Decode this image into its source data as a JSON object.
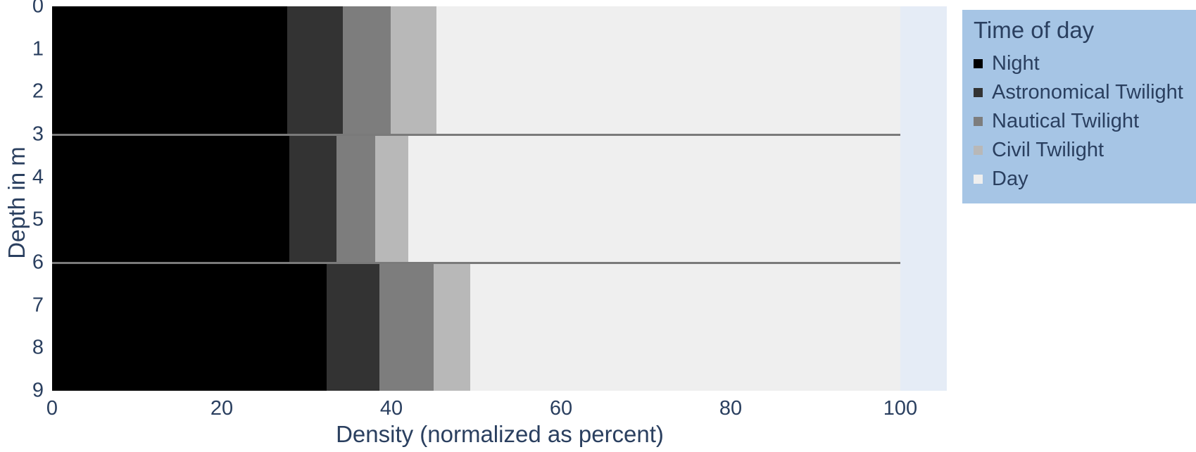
{
  "chart_data": {
    "type": "bar",
    "orientation": "horizontal",
    "stacked": true,
    "title": "",
    "xlabel": "Density (normalized as percent)",
    "ylabel": "Depth in m",
    "xlim": [
      0,
      105.5
    ],
    "xticks": [
      "0",
      "20",
      "40",
      "60",
      "80",
      "100"
    ],
    "xtick_values": [
      0,
      20,
      40,
      60,
      80,
      100
    ],
    "ylim": [
      0,
      9
    ],
    "yticks": [
      "0",
      "1",
      "2",
      "3",
      "4",
      "5",
      "6",
      "7",
      "8",
      "9"
    ],
    "ytick_values": [
      0,
      1,
      2,
      3,
      4,
      5,
      6,
      7,
      8,
      9
    ],
    "grid": false,
    "categories": [
      "0-3 m",
      "3-6 m",
      "6-9 m"
    ],
    "depth_bands": [
      [
        0,
        3
      ],
      [
        3,
        6
      ],
      [
        6,
        9
      ]
    ],
    "band_separators": [
      3,
      6
    ],
    "separator_color": "#7a7a7a",
    "plot_bgcolor": "#e5ecf6",
    "font_color": "#2a3f5f",
    "legend": {
      "title": "Time of day",
      "position": "right",
      "bgcolor": "#a6c5e5"
    },
    "series": [
      {
        "name": "Night",
        "color": "#000000",
        "values": [
          27.7,
          28.0,
          32.4
        ]
      },
      {
        "name": "Astronomical Twilight",
        "color": "#333333",
        "values": [
          6.6,
          5.5,
          6.2
        ]
      },
      {
        "name": "Nautical Twilight",
        "color": "#7d7d7d",
        "values": [
          5.6,
          4.6,
          6.4
        ]
      },
      {
        "name": "Civil Twilight",
        "color": "#b8b8b8",
        "values": [
          5.4,
          3.9,
          4.3
        ]
      },
      {
        "name": "Day",
        "color": "#efefef",
        "values": [
          54.7,
          58.0,
          50.7
        ]
      }
    ]
  }
}
